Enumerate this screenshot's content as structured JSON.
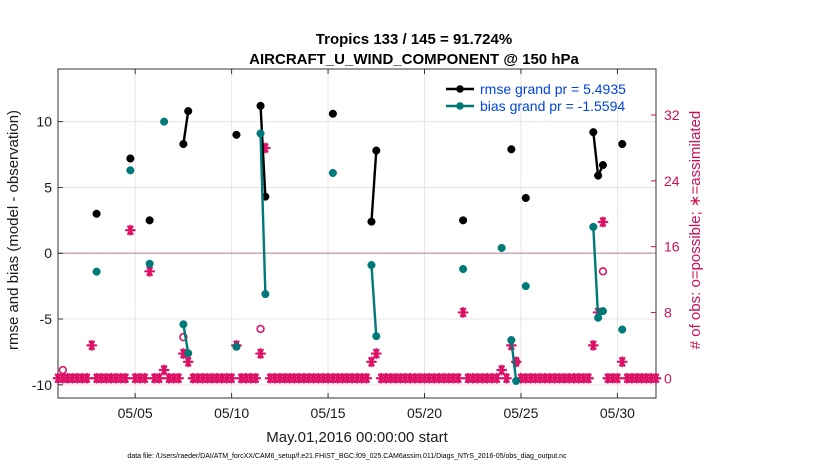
{
  "chart_data": {
    "type": "line",
    "title": "Tropics 133 / 145 = 91.724%",
    "subtitle": "AIRCRAFT_U_WIND_COMPONENT @ 150 hPa",
    "xlabel": "May.01,2016 00:00:00 start",
    "ylabel": "rmse and bias (model - observation)",
    "y2label": "# of obs: o=possible; ∗=assimilated",
    "xlim": [
      1,
      32
    ],
    "ylim": [
      -11,
      14
    ],
    "y2lim": [
      -2.4,
      37.6
    ],
    "x_ticks": [
      5,
      10,
      15,
      20,
      25,
      30
    ],
    "x_tick_labels": [
      "05/05",
      "05/10",
      "05/15",
      "05/20",
      "05/25",
      "05/30"
    ],
    "y_ticks": [
      -10,
      -5,
      0,
      5,
      10
    ],
    "y_tick_labels": [
      "-10",
      "-5",
      "0",
      "5",
      "10"
    ],
    "y2_ticks": [
      0,
      8,
      16,
      24,
      32
    ],
    "y2_tick_labels": [
      "0",
      "8",
      "16",
      "24",
      "32"
    ],
    "grid": true,
    "legend_position": "top-right",
    "footnote": "data file: /Users/raeder/DAI/ATM_forcXX/CAM6_setup/f.e21.FHIST_BGC.f09_025.CAM6assim.011/Diags_NTrS_2016-05/obs_diag_output.nc",
    "series": [
      {
        "name": "rmse grand pr = 5.4935",
        "color": "#000000",
        "points": [
          [
            3,
            3.0
          ],
          [
            4.75,
            7.2
          ],
          [
            5.75,
            2.5
          ],
          [
            7.5,
            8.3
          ],
          [
            7.75,
            10.8
          ],
          [
            10.25,
            9.0
          ],
          [
            11.5,
            11.2
          ],
          [
            11.75,
            4.3
          ],
          [
            15.25,
            10.6
          ],
          [
            17.25,
            2.4
          ],
          [
            17.5,
            7.8
          ],
          [
            22.0,
            2.5
          ],
          [
            24.5,
            7.9
          ],
          [
            25.25,
            4.2
          ],
          [
            28.75,
            9.2
          ],
          [
            29.0,
            5.9
          ],
          [
            29.25,
            6.7
          ],
          [
            30.25,
            8.3
          ]
        ]
      },
      {
        "name": "bias grand pr = -1.5594",
        "color": "#007a78",
        "points": [
          [
            3,
            -1.4
          ],
          [
            4.75,
            6.3
          ],
          [
            5.75,
            -0.8
          ],
          [
            6.5,
            10.0
          ],
          [
            7.5,
            -5.4
          ],
          [
            7.75,
            -7.6
          ],
          [
            10.25,
            -7.1
          ],
          [
            11.5,
            9.1
          ],
          [
            11.75,
            -3.1
          ],
          [
            15.25,
            6.1
          ],
          [
            17.25,
            -0.9
          ],
          [
            17.5,
            -6.3
          ],
          [
            22.0,
            -1.2
          ],
          [
            24.0,
            0.4
          ],
          [
            24.5,
            -6.6
          ],
          [
            24.75,
            -9.7
          ],
          [
            25.25,
            -2.5
          ],
          [
            28.75,
            2.0
          ],
          [
            29.0,
            -4.9
          ],
          [
            29.25,
            -4.4
          ],
          [
            30.25,
            -5.8
          ]
        ]
      }
    ],
    "obs_counts": {
      "color": "#dd1166",
      "x_start": 1.0,
      "x_step": 0.25,
      "assimilated": [
        0,
        0,
        0,
        0,
        0,
        0,
        0,
        0,
        0,
        0,
        0,
        0,
        0,
        0,
        0,
        0,
        4,
        0,
        0,
        0,
        0,
        0,
        0,
        0,
        0,
        0,
        0,
        0,
        0,
        0,
        0,
        0,
        0,
        0,
        0,
        1,
        0,
        0,
        0,
        0,
        0,
        0,
        0,
        3,
        2,
        0,
        0,
        0,
        0,
        0,
        0,
        0,
        0,
        0,
        0,
        0,
        0,
        0,
        0,
        0,
        0,
        0,
        0,
        0,
        3,
        0,
        0,
        0,
        0,
        0,
        0,
        0,
        0,
        0,
        0,
        0,
        0,
        0,
        0,
        0,
        0,
        0,
        0,
        0,
        0,
        0,
        0,
        0,
        0,
        0,
        0,
        0,
        0,
        0,
        0,
        0,
        0,
        0,
        0,
        0,
        0,
        0,
        0,
        0,
        0,
        0,
        0,
        0,
        0,
        0,
        0,
        0,
        0,
        0,
        0,
        0,
        0,
        0,
        0,
        0,
        0,
        0,
        0,
        0,
        0,
        0,
        0,
        0,
        0,
        0,
        0,
        0,
        0,
        0,
        0,
        0,
        0,
        0,
        0,
        0,
        0,
        0
      ],
      "assimilated_override": [
        [
          2.75,
          4
        ],
        [
          4.75,
          18
        ],
        [
          5.75,
          13
        ],
        [
          6.5,
          1
        ],
        [
          7.5,
          3
        ],
        [
          7.75,
          2
        ],
        [
          10.25,
          4
        ],
        [
          11.5,
          3
        ],
        [
          11.75,
          28
        ],
        [
          15.25,
          0
        ],
        [
          17.25,
          2
        ],
        [
          17.5,
          3
        ],
        [
          22.0,
          8
        ],
        [
          24.0,
          1
        ],
        [
          24.5,
          4
        ],
        [
          24.75,
          2
        ],
        [
          25.25,
          0
        ],
        [
          28.75,
          4
        ],
        [
          29.0,
          8
        ],
        [
          29.25,
          19
        ],
        [
          30.25,
          2
        ]
      ],
      "possible": [
        [
          1.25,
          1
        ],
        [
          7.5,
          5
        ],
        [
          11.5,
          6
        ],
        [
          24.75,
          2
        ],
        [
          29.25,
          13
        ]
      ]
    }
  }
}
